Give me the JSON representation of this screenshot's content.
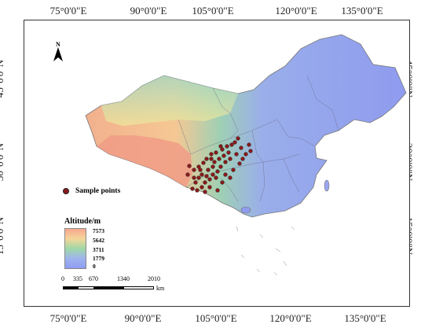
{
  "axes": {
    "longitude_labels": [
      "75°0'0\"E",
      "90°0'0\"E",
      "105°0'0\"E",
      "120°0'0\"E",
      "135°0'0\"E"
    ],
    "latitude_labels": [
      "45°0'0\"N",
      "30°0'0\"N",
      "15°0'0\"N"
    ]
  },
  "north_arrow": {
    "label": "N",
    "icon": "north-arrow-icon"
  },
  "legend": {
    "points_label": "Sample points",
    "points_color": "#8b1a1a",
    "altitude_title": "Altitude/m",
    "altitude_values": [
      "7573",
      "5642",
      "3711",
      "1779",
      "0"
    ],
    "ramp_colors": [
      "#f7a88f",
      "#f5d59a",
      "#9fd8a6",
      "#9fb4ee",
      "#8e9cf2"
    ]
  },
  "scale": {
    "ticks": [
      "0",
      "335",
      "670",
      "1340",
      "2010"
    ],
    "unit": "km"
  }
}
